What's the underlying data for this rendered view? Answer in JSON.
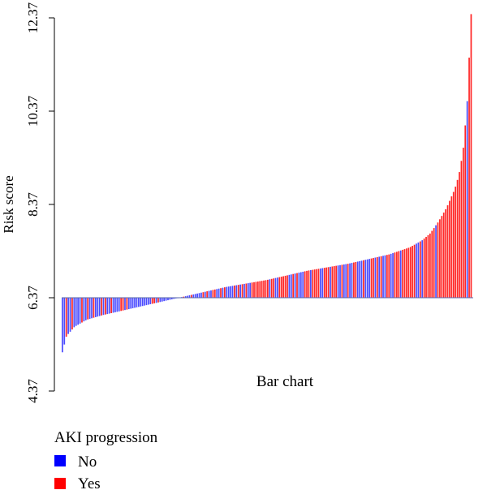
{
  "chart_data": {
    "type": "bar",
    "title": "Bar chart",
    "ylabel": "Risk score",
    "ylim": [
      4.37,
      12.37
    ],
    "baseline": 6.37,
    "yticks": [
      "4.37",
      "6.37",
      "8.37",
      "10.37",
      "12.37"
    ],
    "ytick_values": [
      4.37,
      6.37,
      8.37,
      10.37,
      12.37
    ],
    "legend": {
      "title": "AKI progression",
      "position": "bottom-left",
      "entries": [
        {
          "label": "No",
          "color": "#0000ff"
        },
        {
          "label": "Yes",
          "color": "#ff0000"
        }
      ]
    },
    "n_bars": 210,
    "profile": {
      "ranks": [
        0,
        0.01,
        0.03,
        0.06,
        0.1,
        0.15,
        0.2,
        0.25,
        0.3,
        0.4,
        0.5,
        0.6,
        0.7,
        0.8,
        0.85,
        0.88,
        0.9,
        0.92,
        0.94,
        0.96,
        0.97,
        0.98,
        0.99,
        1.0
      ],
      "values": [
        5.2,
        5.55,
        5.75,
        5.9,
        6.0,
        6.1,
        6.2,
        6.3,
        6.4,
        6.6,
        6.75,
        6.95,
        7.1,
        7.3,
        7.45,
        7.6,
        7.75,
        8.0,
        8.3,
        8.7,
        9.0,
        9.5,
        10.5,
        12.45
      ]
    }
  }
}
